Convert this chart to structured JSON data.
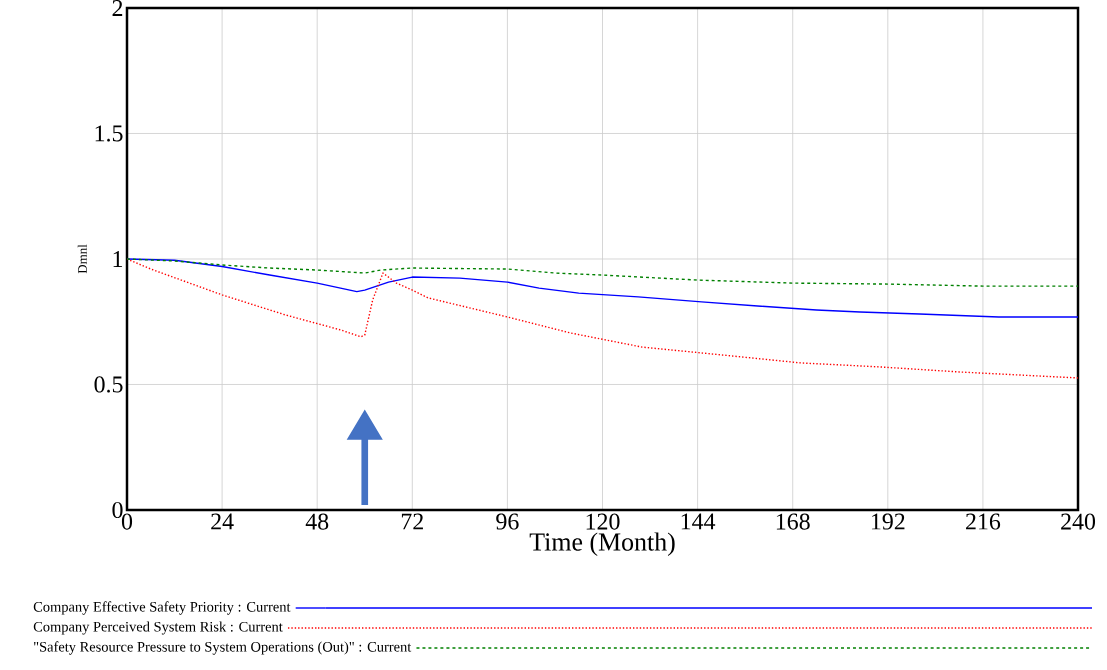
{
  "chart_data": {
    "type": "line",
    "xlabel": "Time (Month)",
    "ylabel": "Dmnl",
    "xlim": [
      0,
      240
    ],
    "ylim": [
      0,
      2
    ],
    "xticks": [
      0,
      24,
      48,
      72,
      96,
      120,
      144,
      168,
      192,
      216,
      240
    ],
    "yticks": [
      0,
      0.5,
      1,
      1.5,
      2
    ],
    "grid": true,
    "legend": "bottom",
    "series": [
      {
        "name": "Company Effective Safety Priority : Current",
        "color": "#0000ff",
        "line_style": "solid",
        "x": [
          0,
          12,
          24,
          36,
          48,
          58,
          60,
          66,
          72,
          84,
          96,
          104,
          114,
          129,
          145,
          160,
          174,
          185,
          200,
          220,
          240
        ],
        "values": [
          1.0,
          0.995,
          0.97,
          0.936,
          0.904,
          0.87,
          0.876,
          0.908,
          0.928,
          0.924,
          0.908,
          0.884,
          0.864,
          0.849,
          0.829,
          0.812,
          0.797,
          0.789,
          0.781,
          0.769,
          0.769
        ]
      },
      {
        "name": "Company Perceived System Risk : Current",
        "color": "#ff0000",
        "line_style": "dotted",
        "x": [
          0,
          6,
          24,
          40,
          54,
          59,
          60,
          62,
          64.6,
          68,
          72,
          76,
          96,
          112,
          130,
          150,
          170,
          190,
          210,
          240
        ],
        "values": [
          1.0,
          0.96,
          0.857,
          0.777,
          0.717,
          0.69,
          0.697,
          0.837,
          0.944,
          0.904,
          0.876,
          0.845,
          0.769,
          0.705,
          0.649,
          0.618,
          0.586,
          0.57,
          0.55,
          0.526
        ]
      },
      {
        "name": "\"Safety Resource Pressure to System Operations (Out)\" : Current",
        "color": "#008000",
        "line_style": "dashed",
        "x": [
          0,
          12,
          24,
          36,
          48,
          60,
          64,
          72,
          96,
          108,
          120,
          144,
          168,
          192,
          216,
          240
        ],
        "values": [
          1.0,
          0.992,
          0.976,
          0.964,
          0.956,
          0.944,
          0.956,
          0.964,
          0.96,
          0.944,
          0.936,
          0.916,
          0.904,
          0.9,
          0.892,
          0.892
        ]
      }
    ]
  }
}
